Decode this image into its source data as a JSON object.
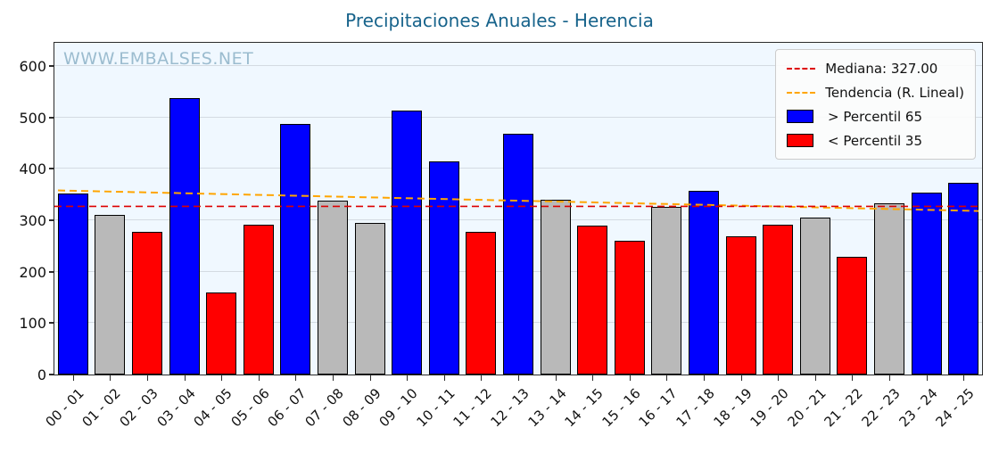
{
  "watermark": "WWW.EMBALSES.NET",
  "chart_data": {
    "type": "bar",
    "title": "Precipitaciones Anuales - Herencia",
    "categories": [
      "00 - 01",
      "01 - 02",
      "02 - 03",
      "03 - 04",
      "04 - 05",
      "05 - 06",
      "06 - 07",
      "07 - 08",
      "08 - 09",
      "09 - 10",
      "10 - 11",
      "11 - 12",
      "12 - 13",
      "13 - 14",
      "14 - 15",
      "15 - 16",
      "16 - 17",
      "17 - 18",
      "18 - 19",
      "19 - 20",
      "20 - 21",
      "21 - 22",
      "22 - 23",
      "23 - 24",
      "24 - 25"
    ],
    "values": [
      352,
      310,
      278,
      538,
      159,
      291,
      488,
      338,
      295,
      514,
      414,
      278,
      469,
      340,
      290,
      260,
      326,
      357,
      269,
      291,
      305,
      229,
      333,
      353,
      372
    ],
    "bands": [
      "above",
      "mid",
      "below",
      "above",
      "below",
      "below",
      "above",
      "mid",
      "mid",
      "above",
      "above",
      "below",
      "above",
      "mid",
      "below",
      "below",
      "mid",
      "above",
      "below",
      "below",
      "mid",
      "below",
      "mid",
      "above",
      "above"
    ],
    "band_colors": {
      "above": "#0000ff",
      "below": "#ff0000",
      "mid": "#b9b9b9"
    },
    "median": {
      "value": 327,
      "color": "#dd0000"
    },
    "trend": {
      "start": 358,
      "end": 318,
      "color": "#ffa500"
    },
    "ylim": [
      0,
      645
    ],
    "yticks": [
      0,
      100,
      200,
      300,
      400,
      500,
      600
    ],
    "xlabel": "",
    "ylabel": "",
    "grid": true,
    "legend_position": "upper right",
    "legend": [
      {
        "swatch": "dash",
        "color": "#dd0000",
        "label": "Mediana: 327.00"
      },
      {
        "swatch": "dash",
        "color": "#ffa500",
        "label": "Tendencia (R. Lineal)"
      },
      {
        "swatch": "patch",
        "color": "#0000ff",
        "label": " > Percentil 65"
      },
      {
        "swatch": "patch",
        "color": "#ff0000",
        "label": " < Percentil 35"
      }
    ]
  }
}
